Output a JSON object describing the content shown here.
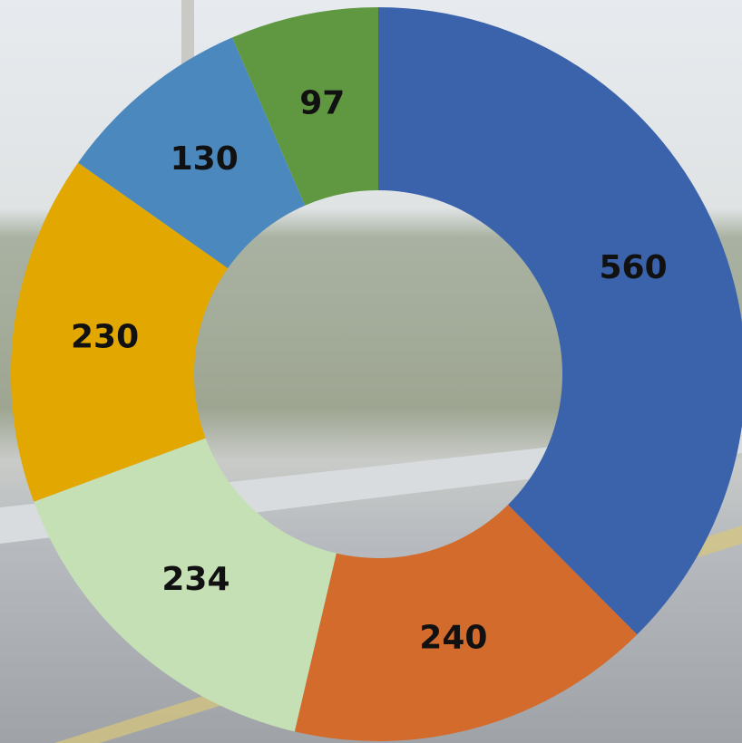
{
  "chart_data": {
    "type": "donut",
    "values": [
      560,
      240,
      234,
      230,
      130,
      97
    ],
    "colors": [
      "#3b63ab",
      "#d36b2c",
      "#c6e0b5",
      "#e2a701",
      "#4b88be",
      "#5f9840"
    ]
  }
}
